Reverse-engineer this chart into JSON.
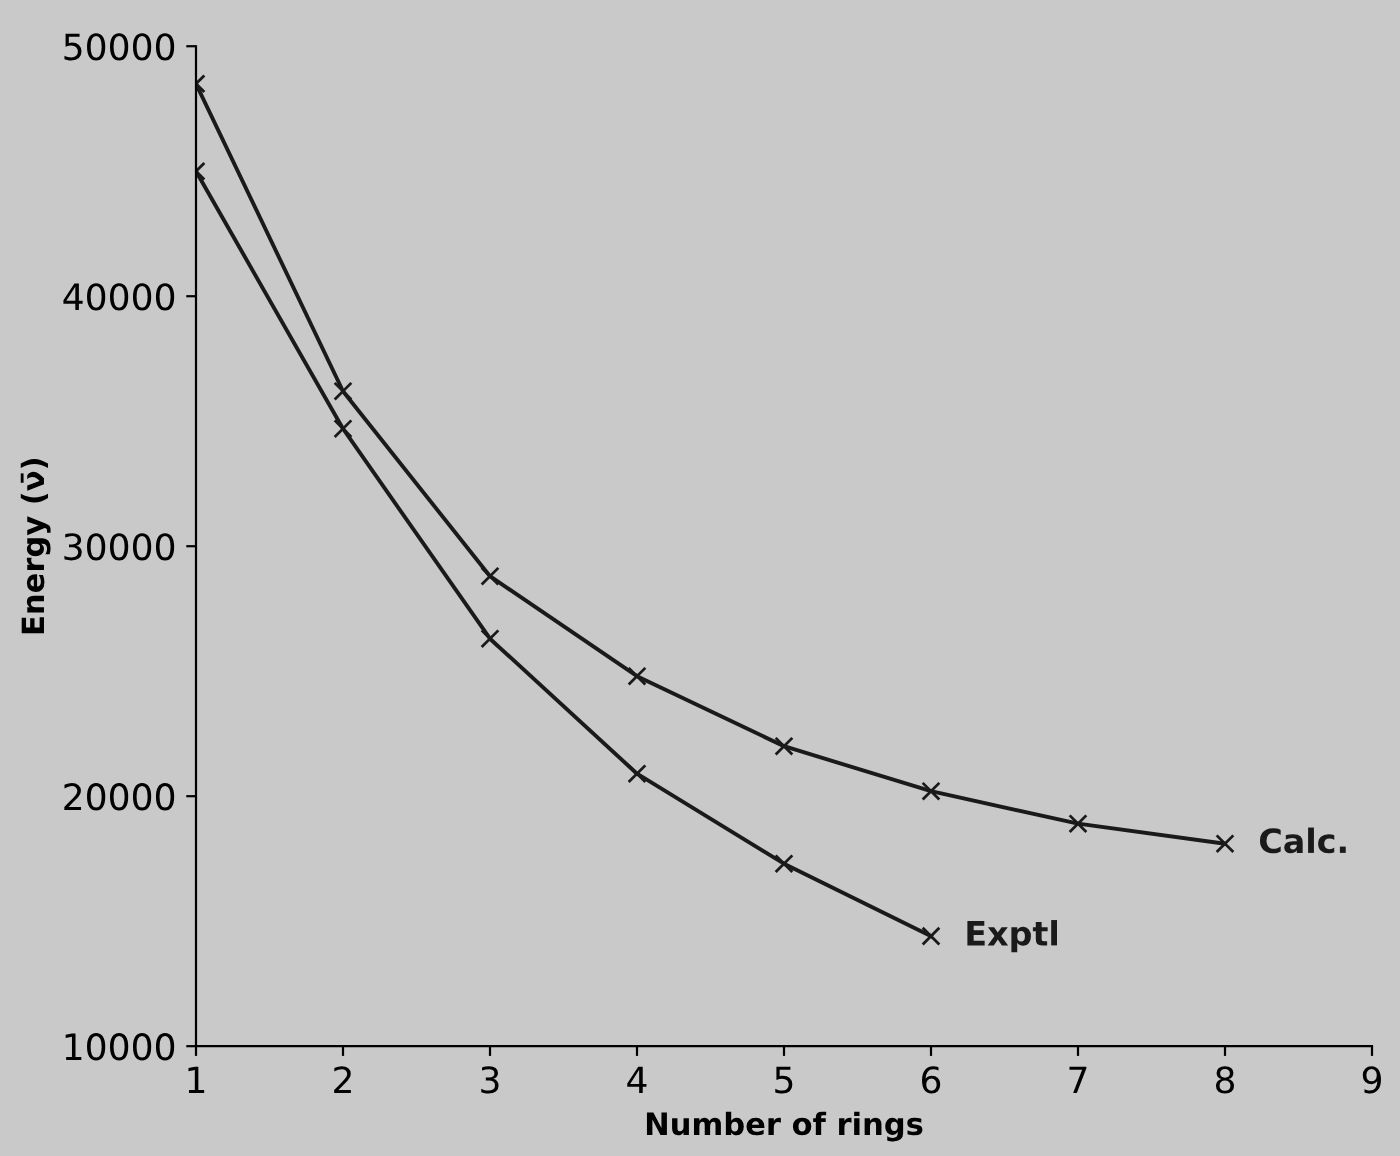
{
  "chart_data": {
    "type": "line",
    "xlabel": "Number of rings",
    "ylabel": "Energy (ν̄)",
    "x": [
      1,
      2,
      3,
      4,
      5,
      6,
      7,
      8
    ],
    "series": [
      {
        "name": "Calc.",
        "color": "#1a1a1a",
        "values": [
          48500,
          36200,
          28800,
          24800,
          22000,
          20200,
          18900,
          18100
        ]
      },
      {
        "name": "Exptl",
        "color": "#1a1a1a",
        "values": [
          45000,
          34700,
          26300,
          20900,
          17300,
          14400,
          null,
          null
        ]
      }
    ],
    "xlim": [
      1,
      9
    ],
    "xticks": [
      1,
      2,
      3,
      4,
      5,
      6,
      7,
      8,
      9
    ],
    "ylim": [
      10000,
      50000
    ],
    "yticks": [
      10000,
      20000,
      30000,
      40000,
      50000
    ],
    "marker": "cross",
    "line_style": "solid",
    "grid": false,
    "legend": false
  }
}
